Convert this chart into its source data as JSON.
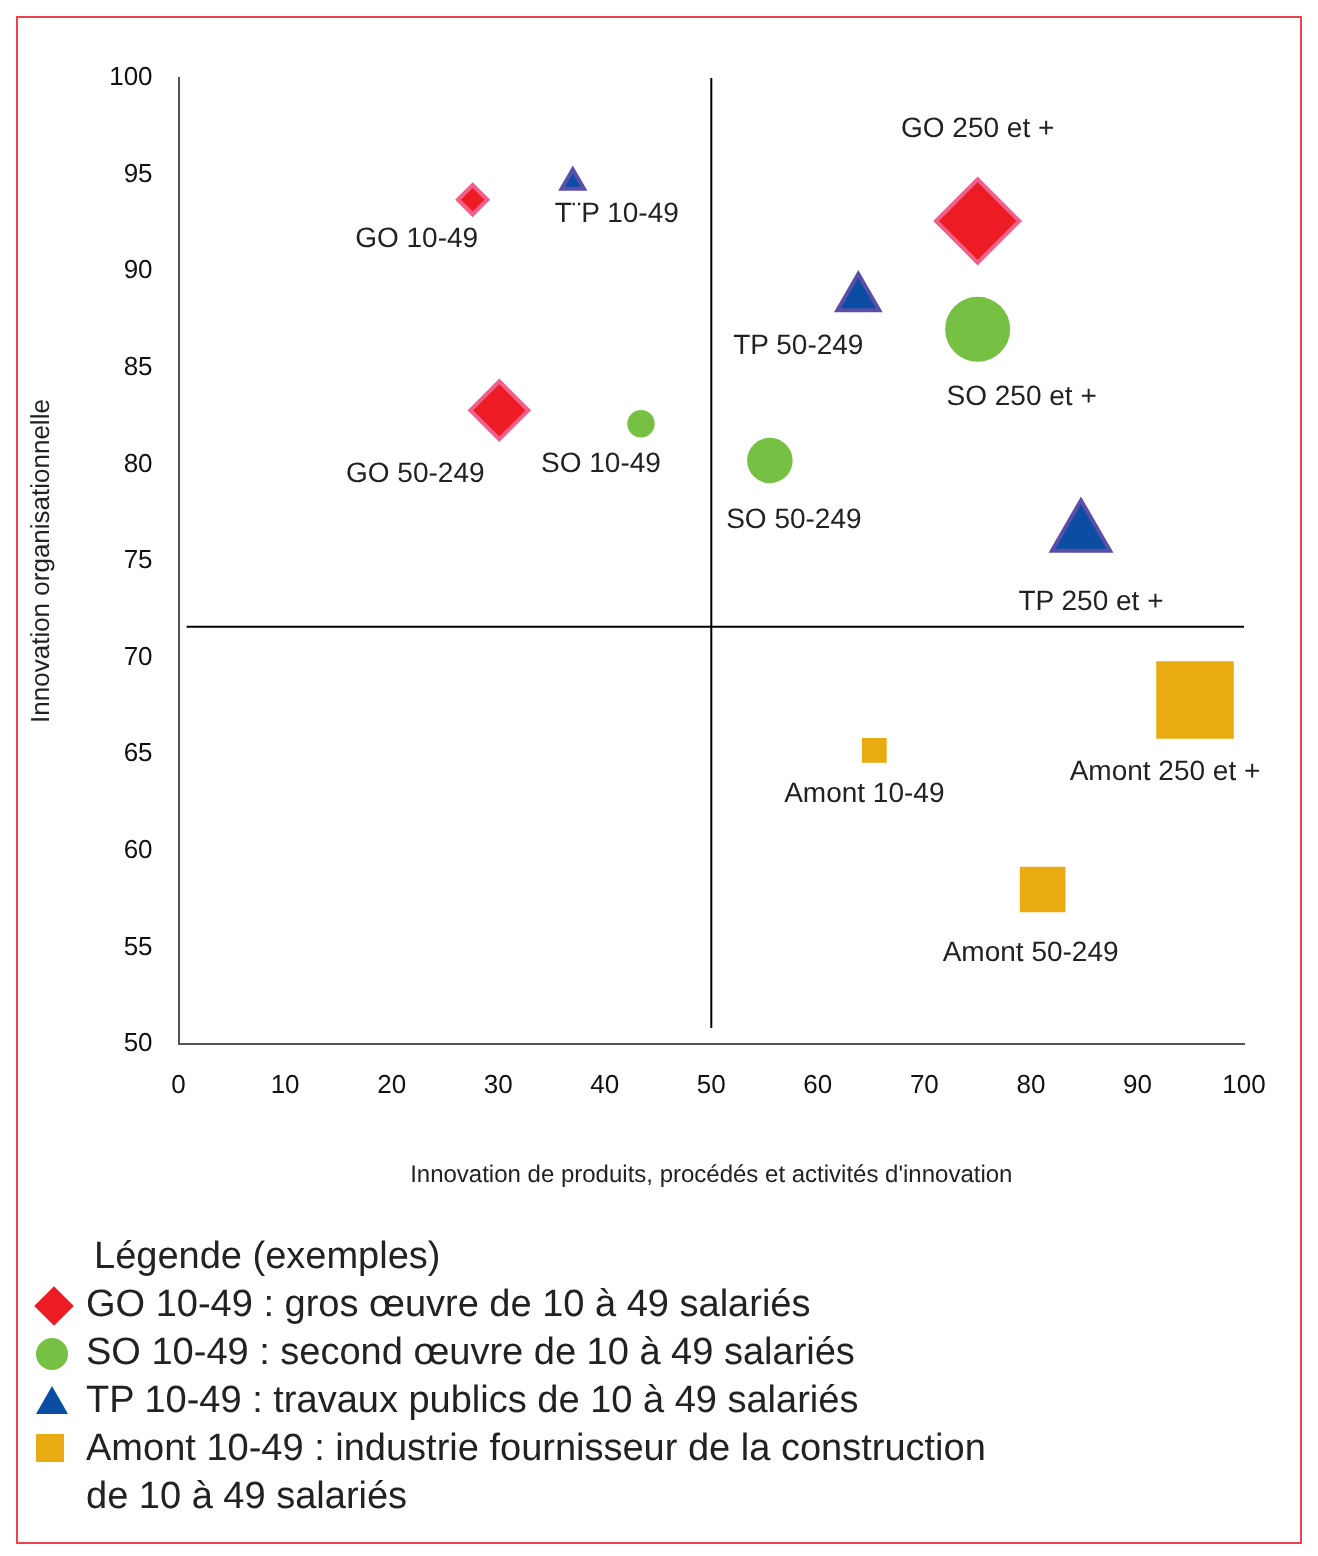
{
  "chart_data": {
    "type": "bubble",
    "xlabel": "Innovation de produits, procédés et activités d'innovation",
    "ylabel": "Innovation organisationnelle",
    "legend_title": "Légende (exemples)",
    "legend": "bottom",
    "grid": false,
    "xlim": [
      0,
      100
    ],
    "xticks": [
      0,
      10,
      20,
      30,
      40,
      50,
      60,
      70,
      80,
      90,
      100
    ],
    "ylim": [
      50,
      100
    ],
    "yticks": [
      50,
      55,
      60,
      65,
      70,
      75,
      80,
      85,
      90,
      95,
      100
    ],
    "series": [
      {
        "name": "GO 10-49  : gros œuvre de 10 à 49 salariés",
        "color": "#ed1c24",
        "marker": "diamond",
        "x": [
          27.6,
          30.1,
          75
        ],
        "values": [
          93.7,
          82.8,
          92.6
        ],
        "sizes": [
          0.08,
          0.31,
          0.64
        ]
      },
      {
        "name": "SO 10-49  : second œuvre de 10 à 49 salariés",
        "color": "#76c043",
        "marker": "circle",
        "x": [
          43.4,
          55.5,
          75
        ],
        "values": [
          82.1,
          80.2,
          87
        ],
        "sizes": [
          0.08,
          0.25,
          0.54
        ]
      },
      {
        "name": "TP 10-49  : travaux publics de 10 à 49 salariés",
        "color": "#0a4da2",
        "marker": "triangle",
        "x": [
          37,
          63.8,
          84.7
        ],
        "values": [
          94.6,
          88.6,
          76.4
        ],
        "sizes": [
          0.04,
          0.14,
          0.27
        ]
      },
      {
        "name": "Amont 10-49 : industrie fournisseur de la construction de 10 à 49 salariés",
        "color": "#e8ab12",
        "marker": "square",
        "x": [
          65.3,
          81.1,
          95.4
        ],
        "values": [
          65.2,
          58,
          67.8
        ],
        "sizes": [
          0.08,
          0.32,
          1
        ]
      }
    ],
    "ref_lines": [
      {
        "axis": "x",
        "value": 50,
        "color": "#000000"
      },
      {
        "axis": "y",
        "value": 71.6,
        "color": "#000000"
      }
    ],
    "annotations": [
      {
        "text": "GO 10-49",
        "x": 27.6,
        "y": 93.7
      },
      {
        "text": "GO 50-249",
        "x": 30.1,
        "y": 82.8
      },
      {
        "text": "GO 250 et +",
        "x": 75,
        "y": 92.6
      },
      {
        "text": "SO 10-49",
        "x": 43.4,
        "y": 82.1
      },
      {
        "text": "SO 50-249",
        "x": 55.5,
        "y": 80.2
      },
      {
        "text": "SO 250 et +",
        "x": 75,
        "y": 87
      },
      {
        "text": "T¨P 10-49",
        "x": 37,
        "y": 94.6
      },
      {
        "text": "TP 50-249",
        "x": 63.8,
        "y": 88.6
      },
      {
        "text": "TP 250 et +",
        "x": 84.7,
        "y": 76.4
      },
      {
        "text": "Amont 10-49",
        "x": 65.3,
        "y": 65.2
      },
      {
        "text": "Amont 50-249",
        "x": 81.1,
        "y": 58
      },
      {
        "text": "Amont 250 et +",
        "x": 95.4,
        "y": 67.8
      }
    ]
  }
}
